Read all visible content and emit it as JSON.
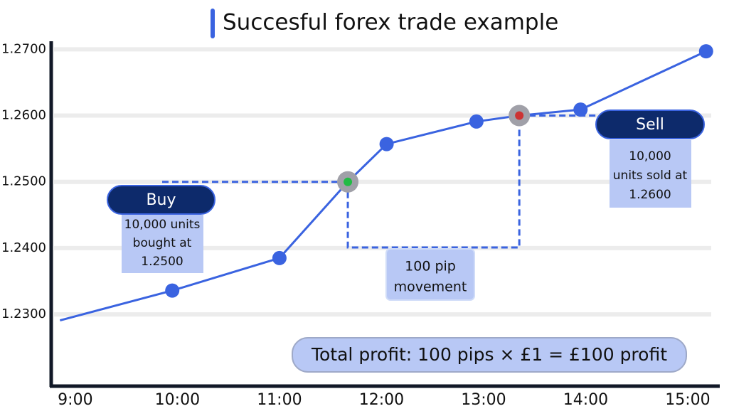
{
  "chart_data": {
    "type": "line",
    "title": "Succesful forex trade example",
    "x": [
      8.85,
      9.95,
      11.0,
      11.67,
      12.05,
      12.93,
      13.35,
      13.95,
      15.18
    ],
    "series": [
      {
        "color": "#3a63e0",
        "values": [
          1.2291,
          1.2336,
          1.2385,
          1.25,
          1.2557,
          1.2591,
          1.26,
          1.2609,
          1.2697
        ],
        "marker_colors": [
          null,
          "#3a63e0",
          "#3a63e0",
          "#22bb44",
          "#3a63e0",
          "#3a63e0",
          "#cc3333",
          "#3a63e0",
          "#3a63e0"
        ]
      }
    ],
    "xlim": [
      8.75,
      15.3
    ],
    "xticks": [
      {
        "value": 9,
        "label": "9:00"
      },
      {
        "value": 10,
        "label": "10:00"
      },
      {
        "value": 11,
        "label": "11:00"
      },
      {
        "value": 12,
        "label": "12:00"
      },
      {
        "value": 13,
        "label": "13:00"
      },
      {
        "value": 14,
        "label": "14:00"
      },
      {
        "value": 15,
        "label": "15:00"
      }
    ],
    "ylim": [
      1.2195,
      1.271
    ],
    "yticks": [
      {
        "value": 1.23,
        "label": "1.2300"
      },
      {
        "value": 1.24,
        "label": "1.2400"
      },
      {
        "value": 1.25,
        "label": "1.2500"
      },
      {
        "value": 1.26,
        "label": "1.2600"
      },
      {
        "value": 1.27,
        "label": "1.2700"
      }
    ],
    "grid": true,
    "annotations": {
      "buy": "Buy",
      "buy_detail": [
        "10,000 units",
        "bought at",
        "1.2500"
      ],
      "sell": "Sell",
      "sell_detail": [
        "10,000",
        "units sold at",
        "1.2600"
      ],
      "movement": [
        "100 pip",
        "movement"
      ],
      "profit": "Total  profit: 100 pips × £1 = £100 profit"
    }
  }
}
